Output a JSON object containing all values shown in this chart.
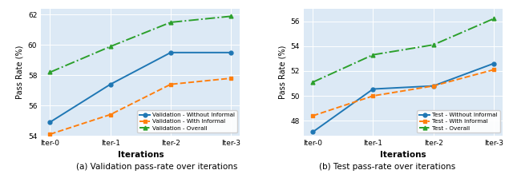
{
  "iterations": [
    "Iter-0",
    "Iter-1",
    "Iter-2",
    "Iter-3"
  ],
  "val_without_informal": [
    54.9,
    57.4,
    59.5,
    59.5
  ],
  "val_with_informal": [
    54.1,
    55.4,
    57.4,
    57.8
  ],
  "val_overall": [
    58.2,
    59.9,
    61.5,
    61.9
  ],
  "test_without_informal": [
    47.1,
    50.55,
    50.8,
    52.6
  ],
  "test_with_informal": [
    48.4,
    50.0,
    50.8,
    52.1
  ],
  "test_overall": [
    51.1,
    53.3,
    54.1,
    56.2
  ],
  "val_ylim": [
    54.0,
    62.4
  ],
  "test_ylim": [
    46.8,
    57.0
  ],
  "val_yticks": [
    54,
    56,
    58,
    60,
    62
  ],
  "test_yticks": [
    48,
    50,
    52,
    54,
    56
  ],
  "color_blue": "#1f77b4",
  "color_orange": "#ff7f0e",
  "color_green": "#2ca02c",
  "bg_color": "#dce9f5",
  "caption_a": "(a) Validation pass-rate over iterations",
  "caption_b": "(b) Test pass-rate over iterations",
  "xlabel": "Iterations",
  "ylabel": "Pass Rate (%)",
  "legend_val": [
    "Validation - Without Informal",
    "Validation - With Informal",
    "Validation - Overall"
  ],
  "legend_test": [
    "Test - Without Informal",
    "Test - With Informal",
    "Test - Overall"
  ]
}
